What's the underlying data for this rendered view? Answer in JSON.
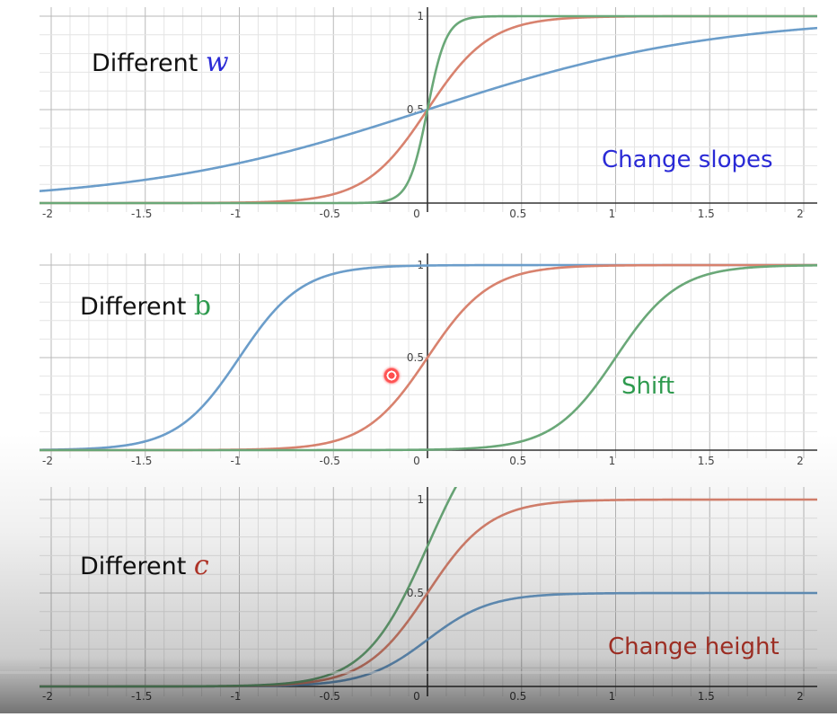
{
  "chart_data": [
    {
      "type": "line",
      "title": "Different w",
      "title_text": "Different ",
      "title_var": "w",
      "title_var_color": "#2a2ad6",
      "annotation": "Change slopes",
      "annotation_color": "#2a2ad6",
      "function": "sigmoid c/(1+exp(-w*(x+b)))",
      "xlim": [
        -2.07,
        2.07
      ],
      "ylim": [
        0,
        1
      ],
      "x_ticks": [
        "-2",
        "-1.5",
        "-1",
        "-0.5",
        "0",
        "0.5",
        "1",
        "1.5",
        "2"
      ],
      "y_ticks": [
        "0.5",
        "1"
      ],
      "series": [
        {
          "name": "blue",
          "color": "#6b9dca",
          "w": 1.3,
          "b": 0,
          "c": 1
        },
        {
          "name": "red",
          "color": "#d8826e",
          "w": 6,
          "b": 0,
          "c": 1
        },
        {
          "name": "green",
          "color": "#6aa878",
          "w": 20,
          "b": 0,
          "c": 1
        }
      ]
    },
    {
      "type": "line",
      "title": "Different b",
      "title_text": "Different ",
      "title_var": "b",
      "title_var_color": "#2e9a4e",
      "annotation": "Shift",
      "annotation_color": "#2e9a4e",
      "function": "sigmoid c/(1+exp(-w*(x+b)))",
      "xlim": [
        -2.07,
        2.07
      ],
      "ylim": [
        0,
        1
      ],
      "x_ticks": [
        "-2",
        "-1.5",
        "-1",
        "-0.5",
        "0",
        "0.5",
        "1",
        "1.5",
        "2"
      ],
      "y_ticks": [
        "0.5",
        "1"
      ],
      "series": [
        {
          "name": "blue",
          "color": "#6b9dca",
          "w": 6,
          "b": 1,
          "c": 1
        },
        {
          "name": "red",
          "color": "#d8826e",
          "w": 6,
          "b": 0,
          "c": 1
        },
        {
          "name": "green",
          "color": "#6aa878",
          "w": 6,
          "b": -1,
          "c": 1
        }
      ]
    },
    {
      "type": "line",
      "title": "Different c",
      "title_text": "Different ",
      "title_var": "c",
      "title_var_color": "#c0382b",
      "annotation": "Change height",
      "annotation_color": "#c0382b",
      "function": "sigmoid c/(1+exp(-w*(x+b)))",
      "xlim": [
        -2.07,
        2.07
      ],
      "ylim": [
        0,
        1
      ],
      "x_ticks": [
        "-2",
        "-1.5",
        "-1",
        "-0.5",
        "0",
        "0.5",
        "1",
        "1.5",
        "2"
      ],
      "y_ticks": [
        "0.5",
        "1"
      ],
      "series": [
        {
          "name": "blue",
          "color": "#6b9dca",
          "w": 6,
          "b": 0,
          "c": 0.5
        },
        {
          "name": "red",
          "color": "#d8826e",
          "w": 6,
          "b": 0,
          "c": 1
        },
        {
          "name": "green",
          "color": "#6aa878",
          "w": 6,
          "b": 0,
          "c": 1.5
        }
      ]
    }
  ],
  "video_progress": 0.0
}
